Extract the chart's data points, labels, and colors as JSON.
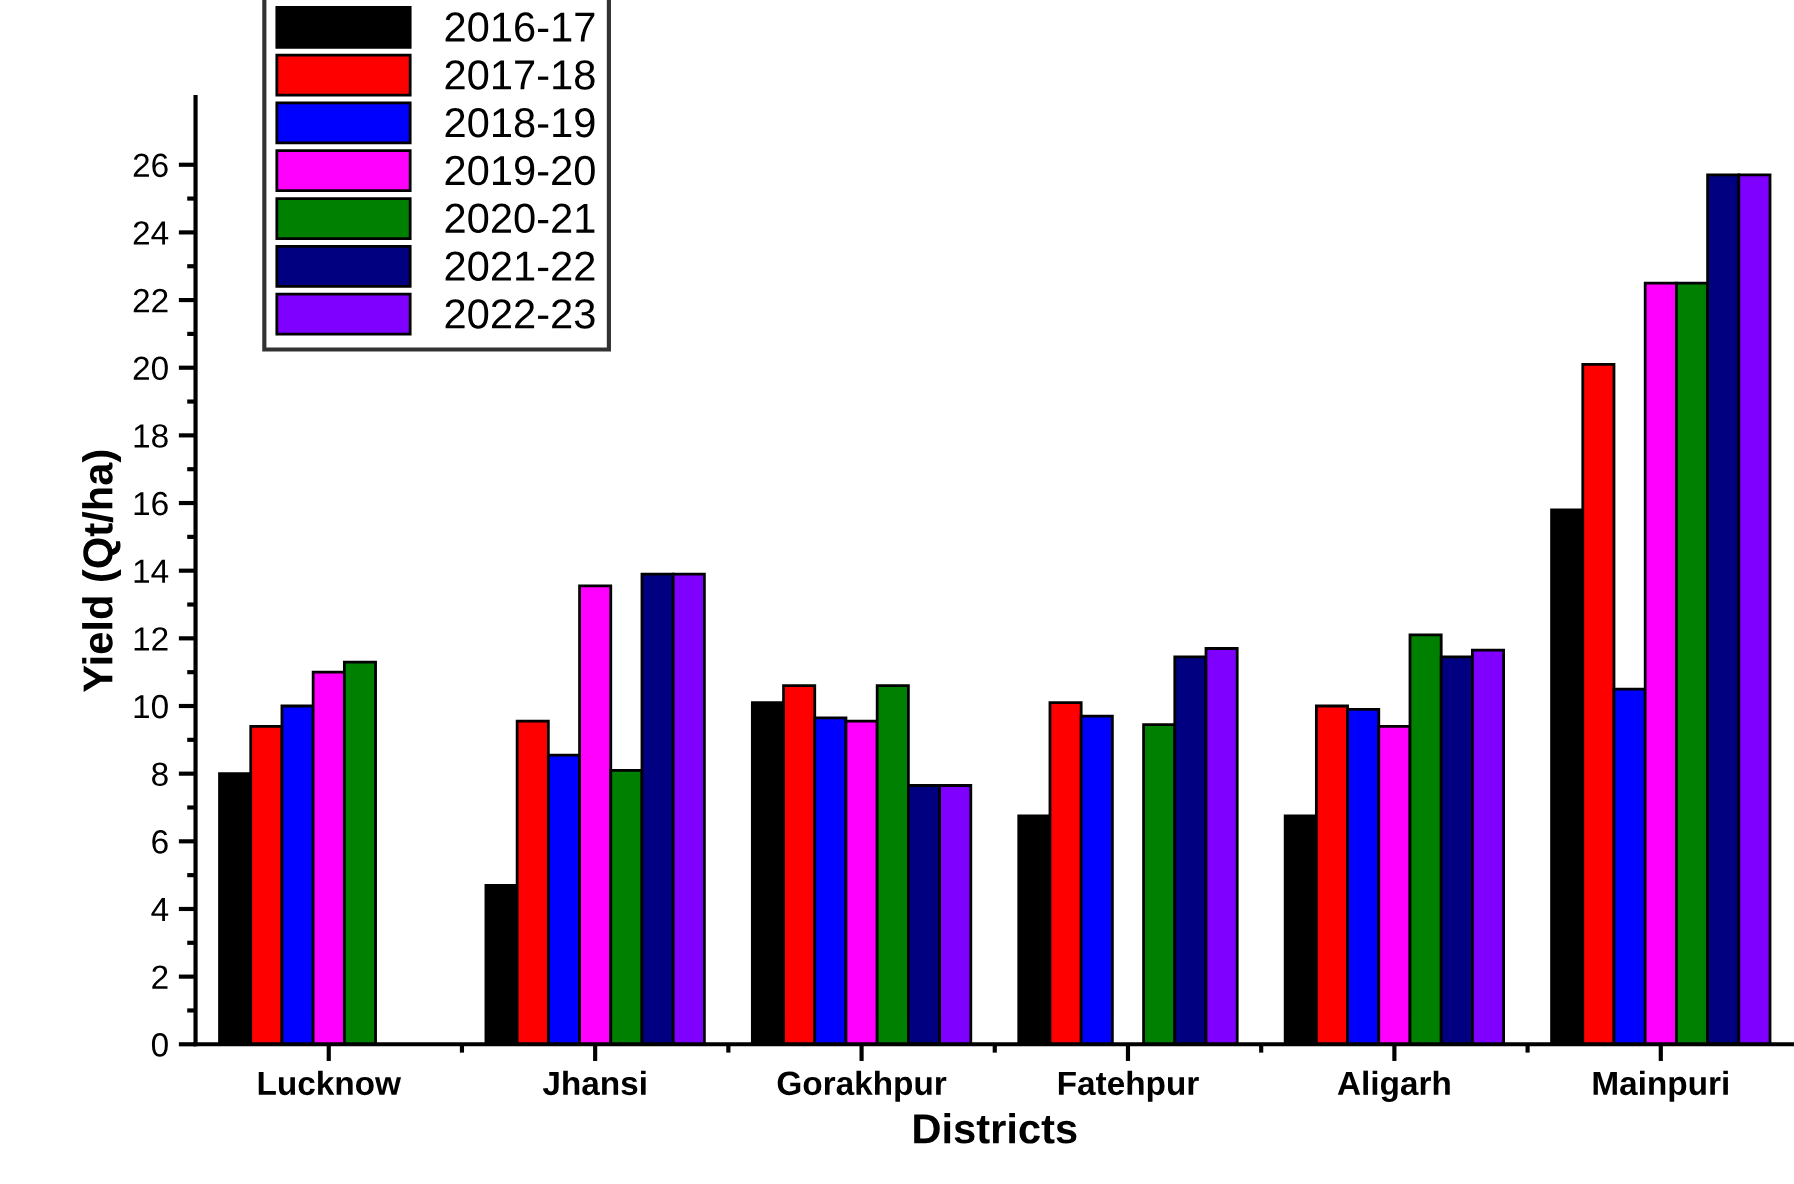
{
  "chart_data": {
    "type": "bar",
    "xlabel": "Districts",
    "ylabel": "Yield (Qt/ha)",
    "categories": [
      "Lucknow",
      "Jhansi",
      "Gorakhpur",
      "Fatehpur",
      "Aligarh",
      "Mainpuri"
    ],
    "series": [
      {
        "name": "2016-17",
        "color": "#000000",
        "values": [
          8.0,
          4.7,
          10.1,
          6.75,
          6.75,
          15.8
        ]
      },
      {
        "name": "2017-18",
        "color": "#ff0000",
        "values": [
          9.4,
          9.55,
          10.6,
          10.1,
          10.0,
          20.1
        ]
      },
      {
        "name": "2018-19",
        "color": "#0000ff",
        "values": [
          10.0,
          8.55,
          9.65,
          9.7,
          9.9,
          10.5
        ]
      },
      {
        "name": "2019-20",
        "color": "#ff00ff",
        "values": [
          11.0,
          13.55,
          9.55,
          null,
          9.4,
          22.5
        ]
      },
      {
        "name": "2020-21",
        "color": "#008000",
        "values": [
          11.3,
          8.1,
          10.6,
          9.45,
          12.1,
          22.5
        ]
      },
      {
        "name": "2021-22",
        "color": "#000080",
        "values": [
          null,
          13.9,
          7.65,
          11.45,
          11.45,
          25.7
        ]
      },
      {
        "name": "2022-23",
        "color": "#8000ff",
        "values": [
          null,
          13.9,
          7.65,
          11.7,
          11.65,
          25.7
        ]
      }
    ],
    "ylim": [
      0,
      28
    ],
    "yticks": [
      0,
      2,
      4,
      6,
      8,
      10,
      12,
      14,
      16,
      18,
      20,
      22,
      24,
      26
    ],
    "grid": false,
    "legend": "top left"
  }
}
